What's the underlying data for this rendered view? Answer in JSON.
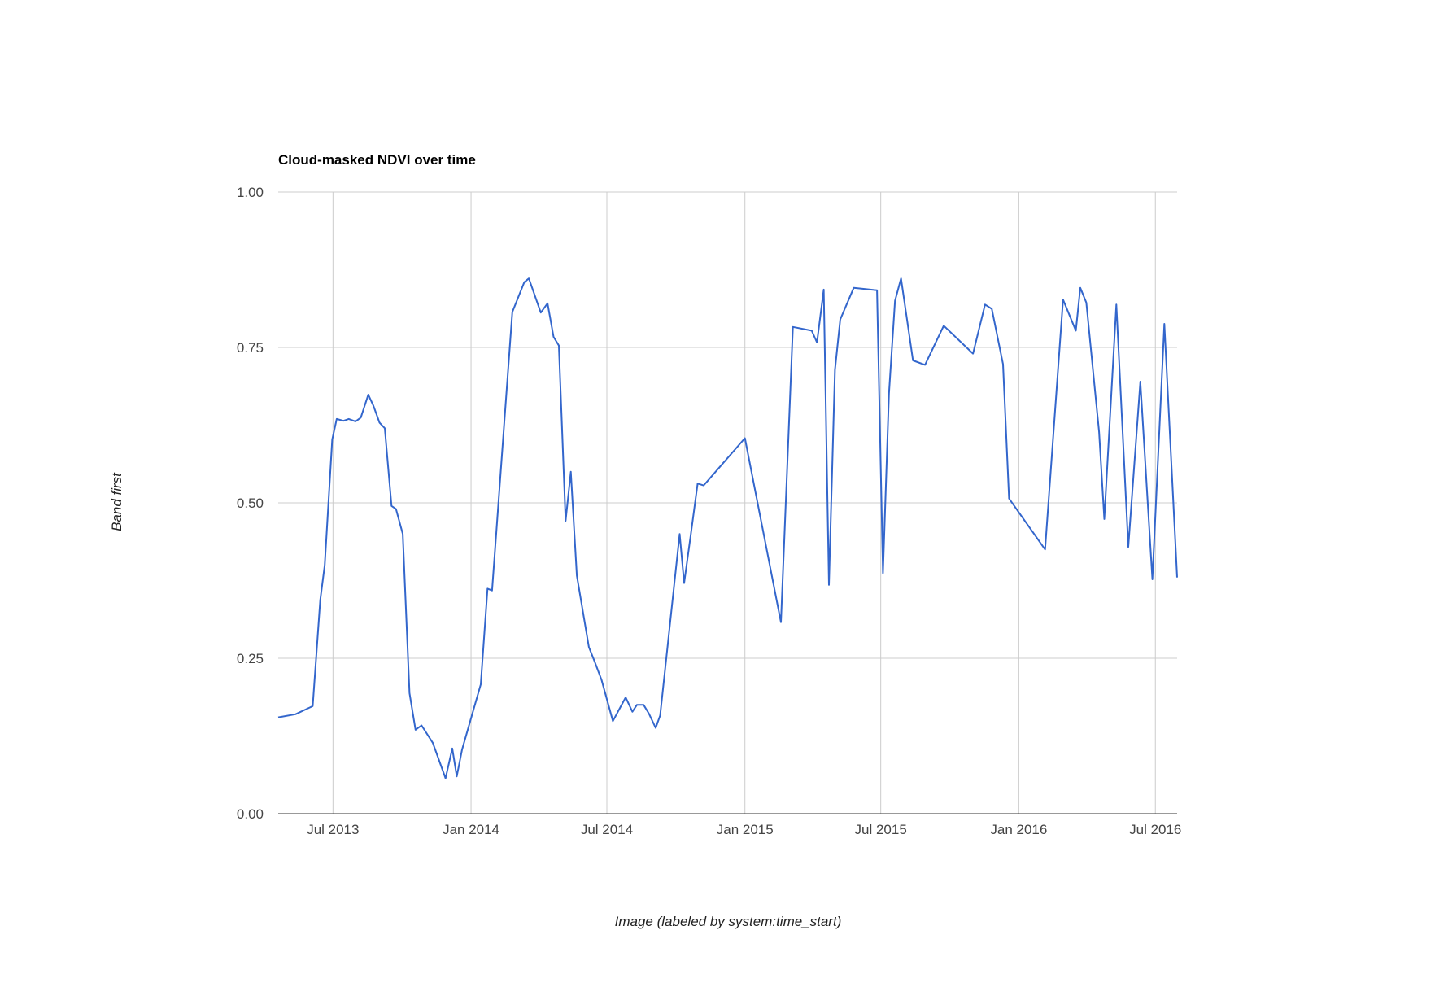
{
  "chart_data": {
    "type": "line",
    "title": "Cloud-masked NDVI over time",
    "xlabel": "Image (labeled by system:time_start)",
    "ylabel": "Band first",
    "xlim": [
      "2013-04-19",
      "2016-07-30"
    ],
    "ylim": [
      0,
      1
    ],
    "grid": true,
    "legend": "none",
    "line_color": "#3366cc",
    "x_ticks": [
      {
        "date": "2013-07-01",
        "label": "Jul 2013"
      },
      {
        "date": "2014-01-01",
        "label": "Jan 2014"
      },
      {
        "date": "2014-07-01",
        "label": "Jul 2014"
      },
      {
        "date": "2015-01-01",
        "label": "Jan 2015"
      },
      {
        "date": "2015-07-01",
        "label": "Jul 2015"
      },
      {
        "date": "2016-01-01",
        "label": "Jan 2016"
      },
      {
        "date": "2016-07-01",
        "label": "Jul 2016"
      }
    ],
    "y_ticks": [
      {
        "value": 0,
        "label": "0.00"
      },
      {
        "value": 0.25,
        "label": "0.25"
      },
      {
        "value": 0.5,
        "label": "0.50"
      },
      {
        "value": 0.75,
        "label": "0.75"
      },
      {
        "value": 1,
        "label": "1.00"
      }
    ],
    "x": [
      "2013-04-19",
      "2013-05-12",
      "2013-06-04",
      "2013-06-14",
      "2013-06-20",
      "2013-06-30",
      "2013-07-06",
      "2013-07-15",
      "2013-07-22",
      "2013-07-31",
      "2013-08-07",
      "2013-08-17",
      "2013-08-24",
      "2013-09-01",
      "2013-09-08",
      "2013-09-17",
      "2013-09-23",
      "2013-10-02",
      "2013-10-11",
      "2013-10-19",
      "2013-10-27",
      "2013-11-11",
      "2013-11-28",
      "2013-12-07",
      "2013-12-13",
      "2013-12-20",
      "2013-12-30",
      "2014-01-14",
      "2014-01-23",
      "2014-01-29",
      "2014-02-25",
      "2014-03-13",
      "2014-03-19",
      "2014-04-04",
      "2014-04-13",
      "2014-04-21",
      "2014-04-28",
      "2014-05-07",
      "2014-05-14",
      "2014-05-22",
      "2014-06-07",
      "2014-06-15",
      "2014-06-24",
      "2014-07-09",
      "2014-07-26",
      "2014-08-04",
      "2014-08-10",
      "2014-08-19",
      "2014-08-26",
      "2014-09-04",
      "2014-09-10",
      "2014-10-06",
      "2014-10-12",
      "2014-10-21",
      "2014-10-30",
      "2014-11-07",
      "2015-01-01",
      "2015-02-18",
      "2015-03-06",
      "2015-03-31",
      "2015-04-07",
      "2015-04-16",
      "2015-04-23",
      "2015-05-01",
      "2015-05-08",
      "2015-05-26",
      "2015-06-26",
      "2015-07-04",
      "2015-07-12",
      "2015-07-20",
      "2015-07-28",
      "2015-08-13",
      "2015-08-29",
      "2015-09-23",
      "2015-11-01",
      "2015-11-17",
      "2015-11-26",
      "2015-12-11",
      "2015-12-19",
      "2016-02-05",
      "2016-02-29",
      "2016-03-17",
      "2016-03-23",
      "2016-03-31",
      "2016-04-17",
      "2016-04-24",
      "2016-05-10",
      "2016-05-26",
      "2016-06-11",
      "2016-06-27",
      "2016-07-13",
      "2016-07-30"
    ],
    "series": [
      {
        "values": [
          0.155,
          0.16,
          0.173,
          0.344,
          0.4,
          0.602,
          0.635,
          0.632,
          0.635,
          0.631,
          0.637,
          0.674,
          0.656,
          0.629,
          0.62,
          0.495,
          0.49,
          0.45,
          0.194,
          0.135,
          0.142,
          0.114,
          0.057,
          0.105,
          0.06,
          0.103,
          0.145,
          0.208,
          0.362,
          0.359,
          0.807,
          0.855,
          0.861,
          0.806,
          0.821,
          0.767,
          0.753,
          0.471,
          0.55,
          0.383,
          0.268,
          0.244,
          0.215,
          0.149,
          0.187,
          0.164,
          0.175,
          0.175,
          0.161,
          0.138,
          0.158,
          0.45,
          0.371,
          0.45,
          0.531,
          0.528,
          0.604,
          0.308,
          0.783,
          0.777,
          0.758,
          0.843,
          0.368,
          0.714,
          0.795,
          0.846,
          0.842,
          0.387,
          0.676,
          0.825,
          0.861,
          0.729,
          0.722,
          0.785,
          0.74,
          0.819,
          0.812,
          0.723,
          0.507,
          0.425,
          0.827,
          0.777,
          0.846,
          0.822,
          0.614,
          0.474,
          0.819,
          0.429,
          0.695,
          0.377,
          0.788,
          0.38
        ]
      }
    ]
  }
}
